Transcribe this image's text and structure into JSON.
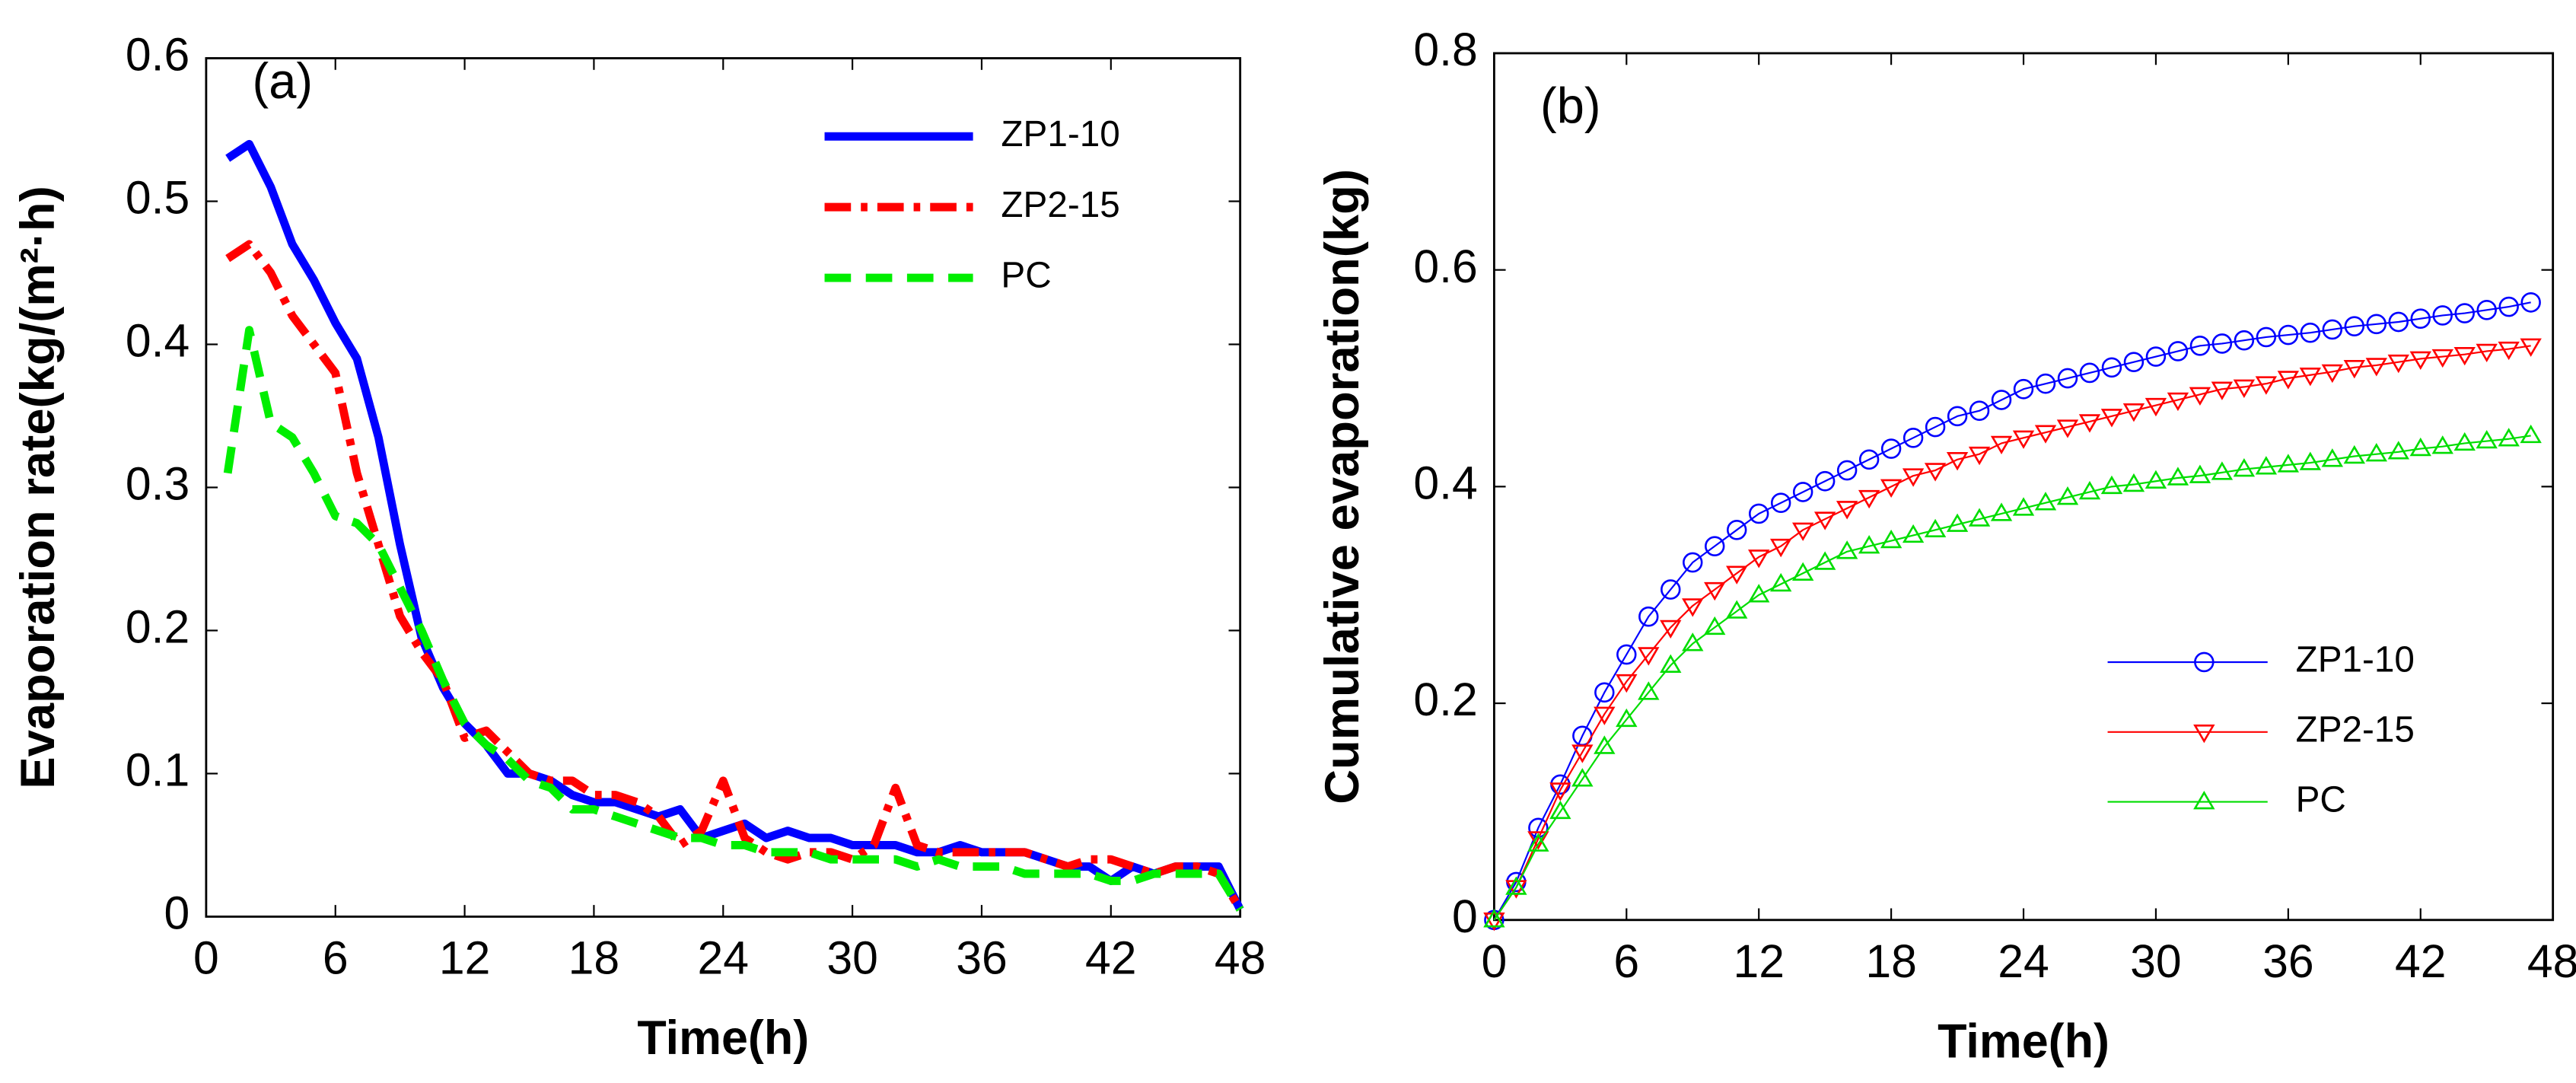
{
  "chart_data": [
    {
      "type": "line",
      "annotation": "(a)",
      "xlabel": "Time(h)",
      "ylabel": "Evaporation rate(kg/(m²·h)",
      "xlim": [
        0,
        48
      ],
      "ylim": [
        0,
        0.6
      ],
      "xticks": [
        0,
        6,
        12,
        18,
        24,
        30,
        36,
        42,
        48
      ],
      "yticks": [
        0,
        0.1,
        0.2,
        0.3,
        0.4,
        0.5,
        0.6
      ],
      "legend": "upper right",
      "x": [
        1,
        2,
        3,
        4,
        5,
        6,
        7,
        8,
        9,
        10,
        11,
        12,
        13,
        14,
        15,
        16,
        17,
        18,
        19,
        20,
        21,
        22,
        23,
        24,
        25,
        26,
        27,
        28,
        29,
        30,
        31,
        32,
        33,
        34,
        35,
        36,
        37,
        38,
        39,
        40,
        41,
        42,
        43,
        44,
        45,
        46,
        47,
        48
      ],
      "series": [
        {
          "name": "ZP1-10",
          "color": "#0000ff",
          "dash": "solid",
          "values": [
            0.53,
            0.54,
            0.51,
            0.47,
            0.445,
            0.415,
            0.39,
            0.335,
            0.26,
            0.195,
            0.16,
            0.135,
            0.12,
            0.1,
            0.1,
            0.095,
            0.085,
            0.08,
            0.08,
            0.075,
            0.07,
            0.075,
            0.055,
            0.06,
            0.065,
            0.055,
            0.06,
            0.055,
            0.055,
            0.05,
            0.05,
            0.05,
            0.045,
            0.045,
            0.05,
            0.045,
            0.045,
            0.045,
            0.04,
            0.035,
            0.035,
            0.025,
            0.035,
            0.03,
            0.035,
            0.035,
            0.035,
            0.005
          ]
        },
        {
          "name": "ZP2-15",
          "color": "#ff0000",
          "dash": "dashdot",
          "values": [
            0.46,
            0.47,
            0.45,
            0.42,
            0.4,
            0.38,
            0.31,
            0.26,
            0.21,
            0.185,
            0.165,
            0.125,
            0.13,
            0.115,
            0.1,
            0.095,
            0.095,
            0.085,
            0.085,
            0.08,
            0.07,
            0.05,
            0.06,
            0.095,
            0.055,
            0.045,
            0.04,
            0.045,
            0.045,
            0.04,
            0.05,
            0.09,
            0.05,
            0.045,
            0.045,
            0.045,
            0.045,
            0.045,
            0.04,
            0.035,
            0.04,
            0.04,
            0.035,
            0.03,
            0.035,
            0.035,
            0.03,
            0.005
          ]
        },
        {
          "name": "PC",
          "color": "#00ee00",
          "dash": "dashed",
          "values": [
            0.31,
            0.41,
            0.345,
            0.335,
            0.31,
            0.28,
            0.275,
            0.26,
            0.23,
            0.2,
            0.165,
            0.135,
            0.12,
            0.11,
            0.095,
            0.09,
            0.075,
            0.075,
            0.07,
            0.065,
            0.06,
            0.055,
            0.055,
            0.05,
            0.05,
            0.045,
            0.045,
            0.045,
            0.04,
            0.04,
            0.04,
            0.04,
            0.035,
            0.04,
            0.035,
            0.035,
            0.035,
            0.03,
            0.03,
            0.03,
            0.03,
            0.025,
            0.025,
            0.03,
            0.03,
            0.03,
            0.03,
            0.005
          ]
        }
      ]
    },
    {
      "type": "line",
      "annotation": "(b)",
      "xlabel": "Time(h)",
      "ylabel": "Cumulative evaporation(kg)",
      "xlim": [
        0,
        48
      ],
      "ylim": [
        0,
        0.8
      ],
      "xticks": [
        0,
        6,
        12,
        18,
        24,
        30,
        36,
        42,
        48
      ],
      "yticks": [
        0,
        0.2,
        0.4,
        0.6,
        0.8
      ],
      "legend": "lower right",
      "x": [
        0,
        1,
        2,
        3,
        4,
        5,
        6,
        7,
        8,
        9,
        10,
        11,
        12,
        13,
        14,
        15,
        16,
        17,
        18,
        19,
        20,
        21,
        22,
        23,
        24,
        25,
        26,
        27,
        28,
        29,
        30,
        31,
        32,
        33,
        34,
        35,
        36,
        37,
        38,
        39,
        40,
        41,
        42,
        43,
        44,
        45,
        46,
        47
      ],
      "series": [
        {
          "name": "ZP1-10",
          "color": "#0000ff",
          "marker": "circle",
          "values": [
            0,
            0.035,
            0.085,
            0.125,
            0.17,
            0.21,
            0.245,
            0.28,
            0.305,
            0.33,
            0.345,
            0.36,
            0.375,
            0.385,
            0.395,
            0.405,
            0.415,
            0.425,
            0.435,
            0.445,
            0.455,
            0.465,
            0.47,
            0.48,
            0.49,
            0.495,
            0.5,
            0.505,
            0.51,
            0.515,
            0.52,
            0.525,
            0.53,
            0.532,
            0.535,
            0.538,
            0.54,
            0.542,
            0.545,
            0.548,
            0.55,
            0.552,
            0.555,
            0.558,
            0.56,
            0.563,
            0.566,
            0.57
          ]
        },
        {
          "name": "ZP2-15",
          "color": "#ff0000",
          "marker": "triangle-down",
          "values": [
            0,
            0.03,
            0.075,
            0.12,
            0.155,
            0.19,
            0.22,
            0.245,
            0.27,
            0.29,
            0.305,
            0.32,
            0.335,
            0.345,
            0.36,
            0.37,
            0.38,
            0.39,
            0.4,
            0.41,
            0.415,
            0.425,
            0.43,
            0.44,
            0.445,
            0.45,
            0.455,
            0.46,
            0.465,
            0.47,
            0.475,
            0.48,
            0.485,
            0.49,
            0.492,
            0.495,
            0.5,
            0.503,
            0.506,
            0.51,
            0.512,
            0.515,
            0.518,
            0.52,
            0.522,
            0.525,
            0.527,
            0.53
          ]
        },
        {
          "name": "PC",
          "color": "#00dd00",
          "marker": "triangle-up",
          "values": [
            0,
            0.03,
            0.07,
            0.1,
            0.13,
            0.16,
            0.185,
            0.21,
            0.235,
            0.255,
            0.27,
            0.285,
            0.3,
            0.31,
            0.32,
            0.33,
            0.34,
            0.345,
            0.35,
            0.355,
            0.36,
            0.365,
            0.37,
            0.375,
            0.38,
            0.385,
            0.39,
            0.395,
            0.4,
            0.402,
            0.405,
            0.408,
            0.41,
            0.413,
            0.416,
            0.418,
            0.42,
            0.422,
            0.425,
            0.428,
            0.43,
            0.432,
            0.435,
            0.437,
            0.44,
            0.442,
            0.444,
            0.447
          ]
        }
      ]
    }
  ]
}
